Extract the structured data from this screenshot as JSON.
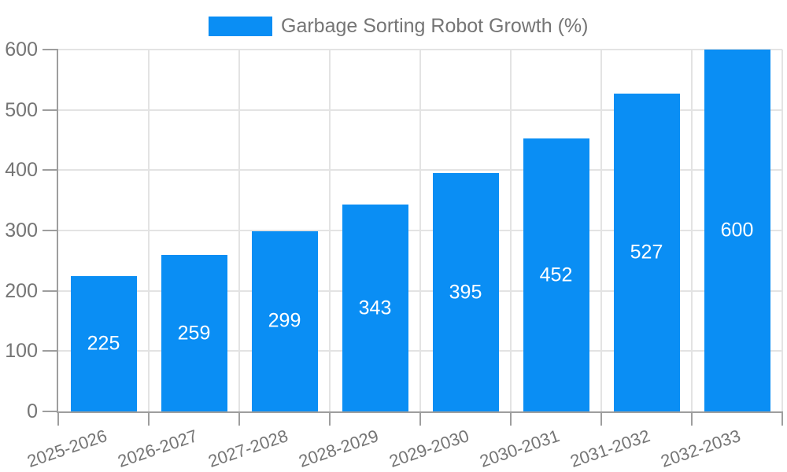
{
  "chart_data": {
    "type": "bar",
    "title": "Garbage Sorting Robot Growth (%)",
    "categories": [
      "2025-2026",
      "2026-2027",
      "2027-2028",
      "2028-2029",
      "2029-2030",
      "2030-2031",
      "2031-2032",
      "2032-2033"
    ],
    "values": [
      225,
      259,
      299,
      343,
      395,
      452,
      527,
      600
    ],
    "xlabel": "",
    "ylabel": "",
    "ylim": [
      0,
      600
    ],
    "yticks": [
      0,
      100,
      200,
      300,
      400,
      500,
      600
    ],
    "grid": true,
    "value_labels": "inside-center",
    "legend_position": "top-center",
    "colors": {
      "bar": "#0a8ef4",
      "value_label": "#ffffff",
      "grid": "#e3e3e3",
      "axis": "#9e9e9e",
      "text": "#757575",
      "background": "#ffffff"
    }
  }
}
